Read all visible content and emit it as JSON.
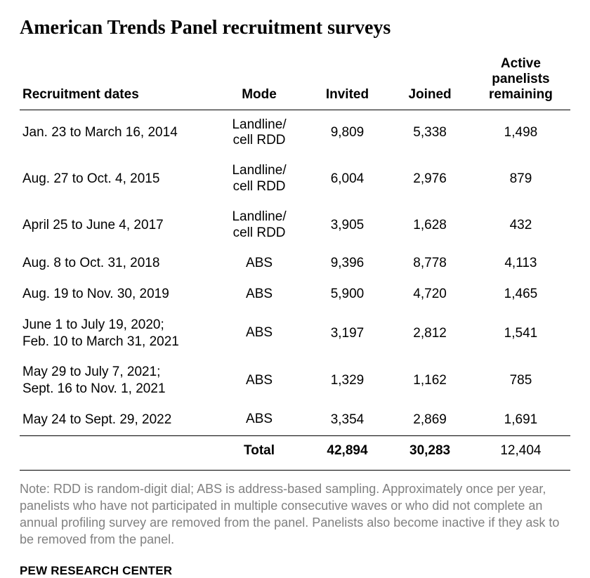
{
  "title": "American Trends Panel recruitment surveys",
  "table": {
    "headers": {
      "dates": "Recruitment dates",
      "mode": "Mode",
      "invited": "Invited",
      "joined": "Joined",
      "remaining_line1": "Active",
      "remaining_line2": "panelists",
      "remaining_line3": "remaining"
    },
    "rows": [
      {
        "dates": "Jan. 23 to March 16, 2014",
        "mode_l1": "Landline/",
        "mode_l2": "cell RDD",
        "invited": "9,809",
        "joined": "5,338",
        "remaining": "1,498"
      },
      {
        "dates": "Aug. 27 to Oct. 4, 2015",
        "mode_l1": "Landline/",
        "mode_l2": "cell RDD",
        "invited": "6,004",
        "joined": "2,976",
        "remaining": "879"
      },
      {
        "dates": "April 25 to June 4, 2017",
        "mode_l1": "Landline/",
        "mode_l2": "cell RDD",
        "invited": "3,905",
        "joined": "1,628",
        "remaining": "432"
      },
      {
        "dates": "Aug. 8 to Oct. 31, 2018",
        "mode_l1": "ABS",
        "mode_l2": "",
        "invited": "9,396",
        "joined": "8,778",
        "remaining": "4,113"
      },
      {
        "dates": "Aug. 19 to Nov. 30, 2019",
        "mode_l1": "ABS",
        "mode_l2": "",
        "invited": "5,900",
        "joined": "4,720",
        "remaining": "1,465"
      },
      {
        "dates_l1": "June 1 to July 19, 2020;",
        "dates_l2": "Feb. 10 to March 31, 2021",
        "mode_l1": "ABS",
        "mode_l2": "",
        "invited": "3,197",
        "joined": "2,812",
        "remaining": "1,541"
      },
      {
        "dates_l1": "May 29 to July 7, 2021;",
        "dates_l2": "Sept. 16 to Nov. 1, 2021",
        "mode_l1": "ABS",
        "mode_l2": "",
        "invited": "1,329",
        "joined": "1,162",
        "remaining": "785"
      },
      {
        "dates": "May 24 to Sept. 29, 2022",
        "mode_l1": "ABS",
        "mode_l2": "",
        "invited": "3,354",
        "joined": "2,869",
        "remaining": "1,691"
      }
    ],
    "total": {
      "label": "Total",
      "invited": "42,894",
      "joined": "30,283",
      "remaining": "12,404"
    }
  },
  "note": "Note: RDD is random-digit dial; ABS is address-based sampling. Approximately once per year, panelists who have not participated in multiple consecutive waves or who did not complete an annual profiling survey are removed from the panel. Panelists also become inactive if they ask to be removed from the panel.",
  "source": "PEW RESEARCH CENTER",
  "style": {
    "title_fontsize": 28,
    "header_fontsize": 19,
    "cell_fontsize": 19,
    "note_fontsize": 18,
    "source_fontsize": 17,
    "text_color": "#000000",
    "note_color": "#808080",
    "bg_color": "#ffffff",
    "border_color": "#000000",
    "font_family_title": "Georgia",
    "font_family_body": "Arial"
  }
}
